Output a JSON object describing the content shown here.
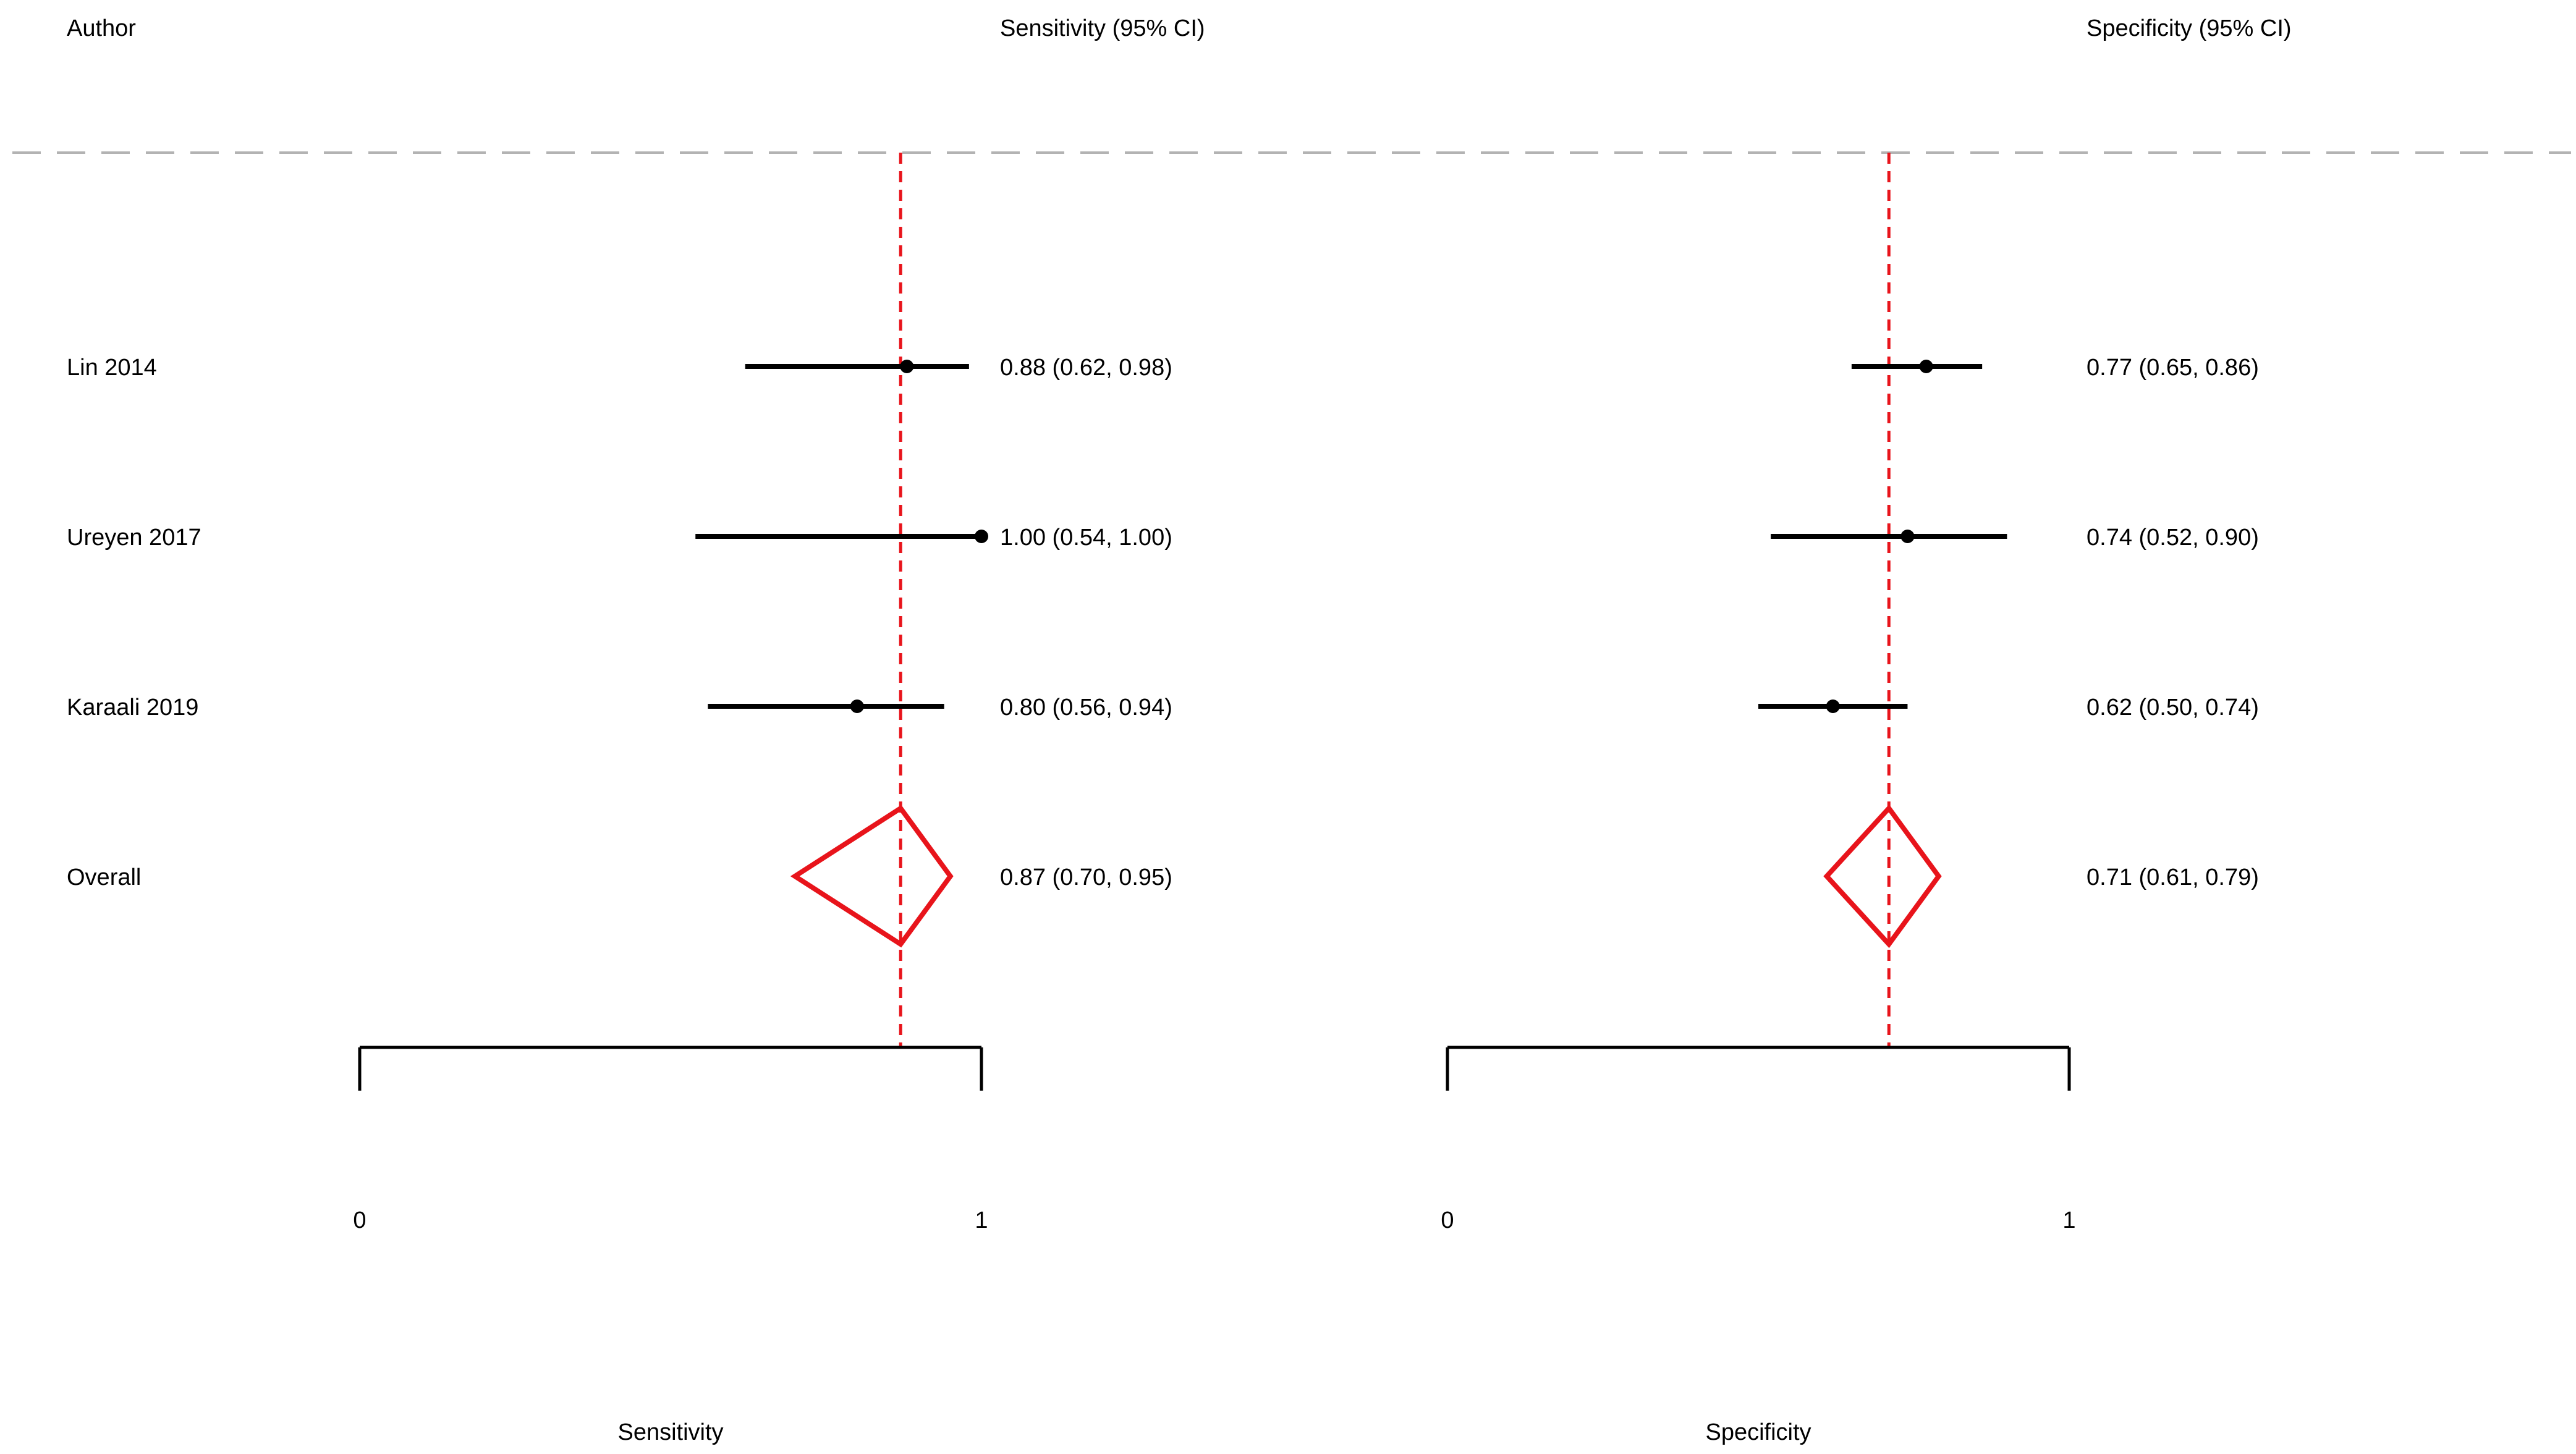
{
  "header": {
    "author": "Author",
    "sensitivity_ci": "Sensitivity (95% CI)",
    "specificity_ci": "Specificity (95% CI)"
  },
  "chart_data": {
    "type": "forest",
    "studies": [
      {
        "author": "Lin 2014",
        "sens": 0.88,
        "sens_lo": 0.62,
        "sens_hi": 0.98,
        "sens_label": "0.88 (0.62, 0.98)",
        "spec": 0.77,
        "spec_lo": 0.65,
        "spec_hi": 0.86,
        "spec_label": "0.77 (0.65, 0.86)"
      },
      {
        "author": "Ureyen 2017",
        "sens": 1.0,
        "sens_lo": 0.54,
        "sens_hi": 1.0,
        "sens_label": "1.00 (0.54, 1.00)",
        "spec": 0.74,
        "spec_lo": 0.52,
        "spec_hi": 0.9,
        "spec_label": "0.74 (0.52, 0.90)"
      },
      {
        "author": "Karaali 2019",
        "sens": 0.8,
        "sens_lo": 0.56,
        "sens_hi": 0.94,
        "sens_label": "0.80 (0.56, 0.94)",
        "spec": 0.62,
        "spec_lo": 0.5,
        "spec_hi": 0.74,
        "spec_label": "0.62 (0.50, 0.74)"
      }
    ],
    "overall": {
      "author": "Overall",
      "sens": 0.87,
      "sens_lo": 0.7,
      "sens_hi": 0.95,
      "sens_label": "0.87 (0.70, 0.95)",
      "spec": 0.71,
      "spec_lo": 0.61,
      "spec_hi": 0.79,
      "spec_label": "0.71 (0.61, 0.79)"
    },
    "axes": {
      "sensitivity": {
        "label": "Sensitivity",
        "range": [
          0,
          1
        ],
        "ticks": [
          "0",
          "1"
        ]
      },
      "specificity": {
        "label": "Specificity",
        "range": [
          0,
          1
        ],
        "ticks": [
          "0",
          "1"
        ]
      }
    },
    "reference_line_color": "#e8141b",
    "diamond_color": "#e8141b",
    "ci_color": "#000000",
    "separator_color": "#b3b3b3"
  }
}
